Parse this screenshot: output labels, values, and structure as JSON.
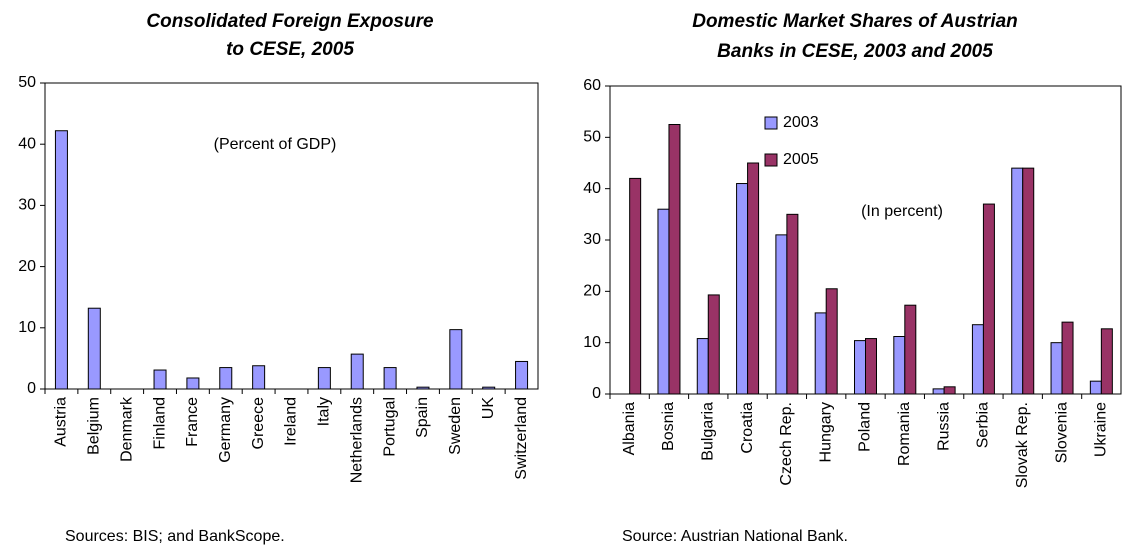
{
  "chart_data": [
    {
      "type": "bar",
      "title": [
        "Consolidated Foreign Exposure",
        "to CESE, 2005"
      ],
      "annotation": "(Percent of GDP)",
      "source": "Sources: BIS; and BankScope.",
      "categories": [
        "Austria",
        "Belgium",
        "Denmark",
        "Finland",
        "France",
        "Germany",
        "Greece",
        "Ireland",
        "Italy",
        "Netherlands",
        "Portugal",
        "Spain",
        "Sweden",
        "UK",
        "Switzerland"
      ],
      "values": [
        42.2,
        13.2,
        0,
        3.1,
        1.8,
        3.5,
        3.8,
        0,
        3.5,
        5.7,
        3.5,
        0.3,
        9.7,
        0.3,
        4.5
      ],
      "color": "#9999ff",
      "ylim": [
        0,
        50
      ],
      "yticks": [
        0,
        10,
        20,
        30,
        40,
        50
      ],
      "grid": false
    },
    {
      "type": "bar",
      "title": [
        "Domestic Market Shares of Austrian",
        "Banks in CESE, 2003 and 2005"
      ],
      "annotation": "(In percent)",
      "source": "Source: Austrian National Bank.",
      "categories": [
        "Albania",
        "Bosnia",
        "Bulgaria",
        "Croatia",
        "Czech Rep.",
        "Hungary",
        "Poland",
        "Romania",
        "Russia",
        "Serbia",
        "Slovak Rep.",
        "Slovenia",
        "Ukraine"
      ],
      "series": [
        {
          "name": "2003",
          "color": "#9999ff",
          "values": [
            null,
            36,
            10.8,
            41,
            31,
            15.8,
            10.4,
            11.2,
            1,
            13.5,
            44,
            10,
            2.5
          ]
        },
        {
          "name": "2005",
          "color": "#993366",
          "values": [
            42,
            52.5,
            19.3,
            45,
            35,
            20.5,
            10.8,
            17.3,
            1.4,
            37,
            44,
            14,
            12.7
          ]
        }
      ],
      "ylim": [
        0,
        60
      ],
      "yticks": [
        0,
        10,
        20,
        30,
        40,
        50,
        60
      ],
      "grid": false,
      "legend": "upper-left"
    }
  ]
}
